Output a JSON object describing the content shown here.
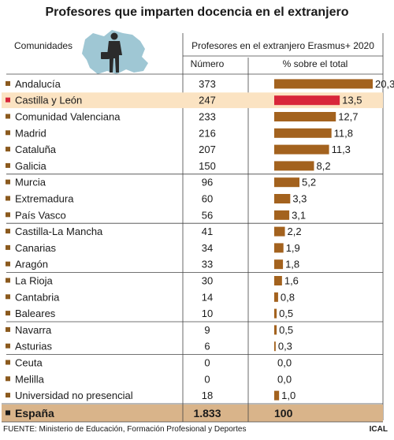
{
  "title": "Profesores que imparten docencia en el extranjero",
  "header": {
    "col_region": "Comunidades",
    "group_label": "Profesores en el extranjero Erasmus+ 2020",
    "col_number": "Número",
    "col_percent": "% sobre el total"
  },
  "colors": {
    "bar": "#a3621e",
    "highlight_bar": "#d8263a",
    "highlight_row": "#fbe3c2",
    "total_row": "#d9b48a",
    "bullet": "#8b5a1e"
  },
  "chart_data": {
    "type": "bar",
    "orientation": "horizontal",
    "highlight": "Castilla y León",
    "group_breaks_after": [
      5,
      8,
      11,
      14,
      16
    ],
    "rows": [
      {
        "name": "Andalucía",
        "number": "373",
        "percent": 20.3,
        "percent_label": "20,3"
      },
      {
        "name": "Castilla y León",
        "number": "247",
        "percent": 13.5,
        "percent_label": "13,5"
      },
      {
        "name": "Comunidad Valenciana",
        "number": "233",
        "percent": 12.7,
        "percent_label": "12,7"
      },
      {
        "name": "Madrid",
        "number": "216",
        "percent": 11.8,
        "percent_label": "11,8"
      },
      {
        "name": "Cataluña",
        "number": "207",
        "percent": 11.3,
        "percent_label": "11,3"
      },
      {
        "name": "Galicia",
        "number": "150",
        "percent": 8.2,
        "percent_label": "8,2"
      },
      {
        "name": "Murcia",
        "number": "96",
        "percent": 5.2,
        "percent_label": "5,2"
      },
      {
        "name": "Extremadura",
        "number": "60",
        "percent": 3.3,
        "percent_label": "3,3"
      },
      {
        "name": "País Vasco",
        "number": "56",
        "percent": 3.1,
        "percent_label": "3,1"
      },
      {
        "name": "Castilla-La Mancha",
        "number": "41",
        "percent": 2.2,
        "percent_label": "2,2"
      },
      {
        "name": "Canarias",
        "number": "34",
        "percent": 1.9,
        "percent_label": "1,9"
      },
      {
        "name": "Aragón",
        "number": "33",
        "percent": 1.8,
        "percent_label": "1,8"
      },
      {
        "name": "La Rioja",
        "number": "30",
        "percent": 1.6,
        "percent_label": "1,6"
      },
      {
        "name": "Cantabria",
        "number": "14",
        "percent": 0.8,
        "percent_label": "0,8"
      },
      {
        "name": "Baleares",
        "number": "10",
        "percent": 0.5,
        "percent_label": "0,5"
      },
      {
        "name": "Navarra",
        "number": "9",
        "percent": 0.5,
        "percent_label": "0,5"
      },
      {
        "name": "Asturias",
        "number": "6",
        "percent": 0.3,
        "percent_label": "0,3"
      },
      {
        "name": "Ceuta",
        "number": "0",
        "percent": 0.0,
        "percent_label": "0,0"
      },
      {
        "name": "Melilla",
        "number": "0",
        "percent": 0.0,
        "percent_label": "0,0"
      },
      {
        "name": "Universidad no presencial",
        "number": "18",
        "percent": 1.0,
        "percent_label": "1,0"
      }
    ],
    "total": {
      "name": "España",
      "number": "1.833",
      "percent_label": "100"
    }
  },
  "footer": {
    "source": "FUENTE: Ministerio de Educación, Formación Profesional y Deportes",
    "credit": "ICAL"
  }
}
